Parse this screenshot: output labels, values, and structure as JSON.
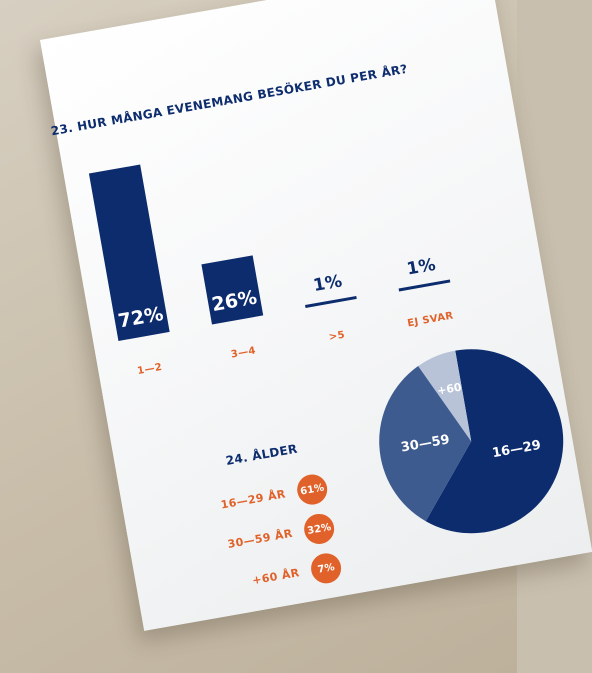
{
  "chart_data": [
    {
      "type": "bar",
      "title": "23. HUR MÅNGA EVENEMANG BESÖKER DU PER ÅR?",
      "categories": [
        "1—2",
        "3—4",
        ">5",
        "EJ SVAR"
      ],
      "values": [
        72,
        26,
        1,
        1
      ],
      "value_labels": [
        "72%",
        "26%",
        "1%",
        "1%"
      ],
      "unit": "%",
      "ylim": [
        0,
        72
      ],
      "grid": false,
      "legend": "none",
      "colors": {
        "bar": "#0c2c6e",
        "category_label": "#e0622a"
      }
    },
    {
      "type": "pie",
      "title": "24. ÅLDER",
      "slices": [
        {
          "label": "16—29",
          "legend_label": "16—29 ÅR",
          "value": 61,
          "value_label": "61%",
          "color": "#0c2c6e"
        },
        {
          "label": "30—59",
          "legend_label": "30—59 ÅR",
          "value": 32,
          "value_label": "32%",
          "color": "#3e5b8f"
        },
        {
          "label": "+60",
          "legend_label": "+60 ÅR",
          "value": 7,
          "value_label": "7%",
          "color": "#b8c3d8"
        }
      ],
      "legend": "left",
      "colors": {
        "legend_badge": "#e0622a"
      }
    }
  ]
}
